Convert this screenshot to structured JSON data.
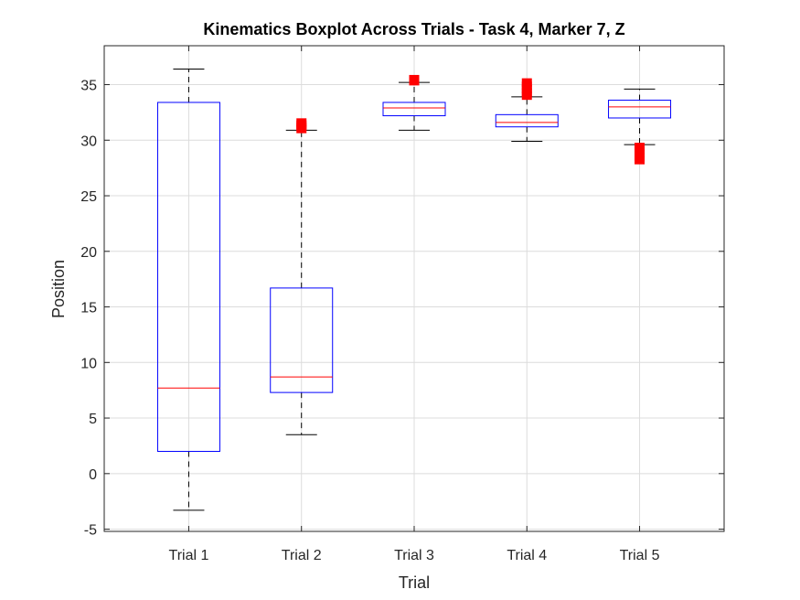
{
  "chart_data": {
    "type": "boxplot",
    "title": "Kinematics Boxplot Across Trials - Task 4, Marker 7, Z",
    "xlabel": "Trial",
    "ylabel": "Position",
    "ylim": [
      -5.2,
      38.5
    ],
    "yticks": [
      "-5",
      "0",
      "5",
      "10",
      "15",
      "20",
      "25",
      "30",
      "35"
    ],
    "grid": true,
    "colors": {
      "box": "#0000ff",
      "median": "#ff0000",
      "whisker": "#000000",
      "outlier": "#ff0000",
      "grid": "#dcdcdc"
    },
    "categories": [
      "Trial 1",
      "Trial 2",
      "Trial 3",
      "Trial 4",
      "Trial 5"
    ],
    "boxes": [
      {
        "whisker_low": -3.3,
        "q1": 2.0,
        "median": 7.7,
        "q3": 33.4,
        "whisker_high": 36.4,
        "outliers": []
      },
      {
        "whisker_low": 3.5,
        "q1": 7.3,
        "median": 8.7,
        "q3": 16.7,
        "whisker_high": 30.9,
        "outliers": [
          31.0,
          31.2,
          31.4,
          31.6
        ]
      },
      {
        "whisker_low": 30.9,
        "q1": 32.2,
        "median": 32.9,
        "q3": 33.4,
        "whisker_high": 35.2,
        "outliers": [
          35.3,
          35.5
        ]
      },
      {
        "whisker_low": 29.9,
        "q1": 31.2,
        "median": 31.6,
        "q3": 32.3,
        "whisker_high": 33.9,
        "outliers": [
          34.0,
          34.3,
          34.6,
          34.9,
          35.2
        ]
      },
      {
        "whisker_low": 29.6,
        "q1": 32.0,
        "median": 33.0,
        "q3": 33.6,
        "whisker_high": 34.6,
        "outliers": [
          28.2,
          28.5,
          28.8,
          29.1,
          29.4
        ]
      }
    ]
  }
}
